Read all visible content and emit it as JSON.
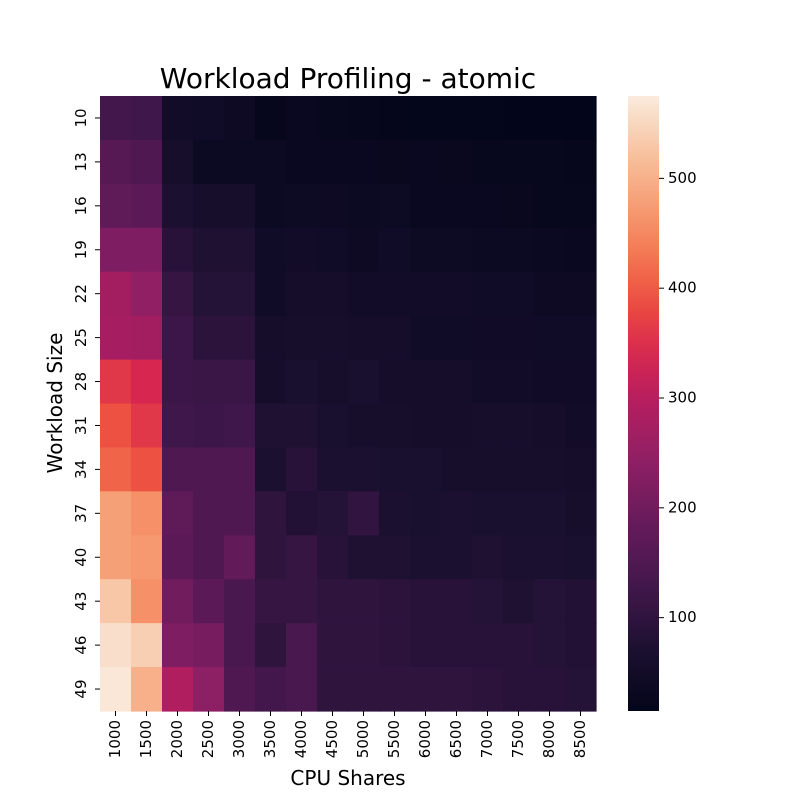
{
  "chart_data": {
    "type": "heatmap",
    "title": "Workload Profiling - atomic",
    "xlabel": "CPU Shares",
    "ylabel": "Workload Size",
    "x": [
      "1000",
      "1500",
      "2000",
      "2500",
      "3000",
      "3500",
      "4000",
      "4500",
      "5000",
      "5500",
      "6000",
      "6500",
      "7000",
      "7500",
      "8000",
      "8500"
    ],
    "y": [
      "10",
      "13",
      "16",
      "19",
      "22",
      "25",
      "28",
      "31",
      "34",
      "37",
      "40",
      "43",
      "46",
      "49"
    ],
    "values": [
      [
        130,
        125,
        50,
        45,
        40,
        22,
        30,
        25,
        22,
        20,
        18,
        18,
        18,
        15,
        15,
        14
      ],
      [
        160,
        150,
        60,
        35,
        35,
        35,
        30,
        30,
        30,
        28,
        30,
        28,
        25,
        25,
        25,
        22
      ],
      [
        175,
        170,
        70,
        60,
        60,
        35,
        38,
        40,
        35,
        38,
        30,
        30,
        30,
        28,
        25,
        25
      ],
      [
        220,
        220,
        90,
        75,
        75,
        45,
        50,
        45,
        40,
        45,
        38,
        38,
        35,
        35,
        32,
        30
      ],
      [
        270,
        245,
        110,
        85,
        85,
        45,
        55,
        55,
        50,
        50,
        50,
        50,
        45,
        45,
        40,
        40
      ],
      [
        275,
        270,
        120,
        95,
        95,
        55,
        60,
        60,
        55,
        55,
        45,
        45,
        48,
        48,
        45,
        45
      ],
      [
        360,
        340,
        120,
        115,
        115,
        55,
        65,
        60,
        65,
        55,
        55,
        55,
        50,
        50,
        48,
        48
      ],
      [
        390,
        360,
        125,
        120,
        125,
        75,
        75,
        65,
        60,
        60,
        55,
        55,
        60,
        60,
        55,
        50
      ],
      [
        410,
        390,
        150,
        150,
        150,
        70,
        90,
        70,
        70,
        65,
        65,
        60,
        60,
        60,
        60,
        55
      ],
      [
        480,
        460,
        175,
        150,
        150,
        100,
        80,
        85,
        105,
        70,
        65,
        70,
        65,
        65,
        65,
        60
      ],
      [
        480,
        470,
        170,
        150,
        180,
        100,
        110,
        90,
        75,
        75,
        70,
        70,
        75,
        70,
        70,
        65
      ],
      [
        530,
        460,
        200,
        170,
        140,
        110,
        110,
        100,
        100,
        95,
        90,
        90,
        85,
        75,
        85,
        80
      ],
      [
        560,
        540,
        220,
        210,
        140,
        100,
        140,
        100,
        100,
        95,
        90,
        90,
        90,
        90,
        85,
        80
      ],
      [
        570,
        500,
        290,
        240,
        150,
        130,
        140,
        100,
        100,
        100,
        100,
        100,
        95,
        90,
        90,
        85
      ]
    ],
    "colorbar": {
      "min": 15,
      "max": 575,
      "ticks": [
        100,
        200,
        300,
        400,
        500
      ]
    },
    "colormap": "rocket"
  }
}
